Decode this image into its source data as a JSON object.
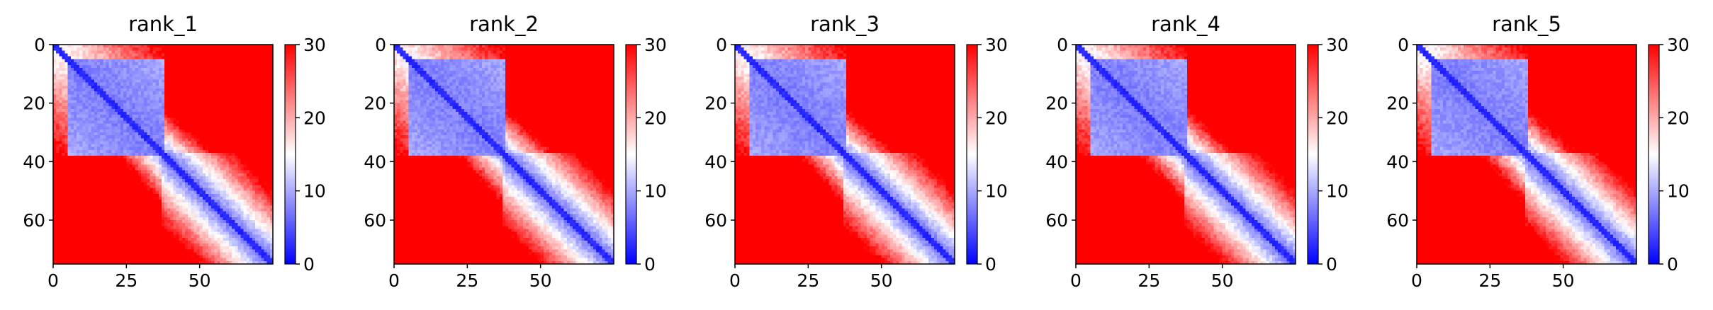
{
  "chart_data": {
    "type": "heatmap",
    "colormap": "bwr",
    "vmin": 0,
    "vmax": 30,
    "n_residues": 75,
    "xticks": [
      0,
      25,
      50
    ],
    "yticks": [
      0,
      20,
      40,
      60
    ],
    "colorbar_ticks": [
      0,
      10,
      20,
      30
    ],
    "xlim": [
      0,
      75
    ],
    "ylim": [
      75,
      0
    ],
    "panels": [
      {
        "title": "rank_1",
        "block_end": 37,
        "block_split": 5
      },
      {
        "title": "rank_2",
        "block_end": 37,
        "block_split": 5
      },
      {
        "title": "rank_3",
        "block_end": 37,
        "block_split": 5
      },
      {
        "title": "rank_4",
        "block_end": 37,
        "block_split": 5
      },
      {
        "title": "rank_5",
        "block_end": 37,
        "block_split": 5
      }
    ]
  }
}
